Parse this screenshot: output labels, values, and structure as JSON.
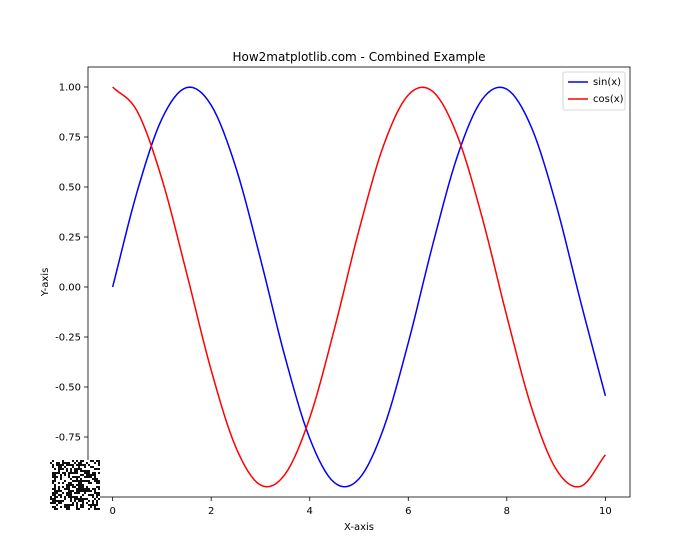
{
  "chart_data": {
    "type": "line",
    "title": "How2matplotlib.com - Combined Example",
    "xlabel": "X-axis",
    "ylabel": "Y-axis",
    "xlim": [
      -0.5,
      10.5
    ],
    "ylim": [
      -1.05,
      1.1
    ],
    "x_ticks": [
      0,
      2,
      4,
      6,
      8,
      10
    ],
    "x_tick_labels": [
      "0",
      "2",
      "4",
      "6",
      "8",
      "10"
    ],
    "y_ticks": [
      -0.75,
      -0.5,
      -0.25,
      0.0,
      0.25,
      0.5,
      0.75,
      1.0
    ],
    "y_tick_labels": [
      "-0.75",
      "-0.50",
      "-0.25",
      "0.00",
      "0.25",
      "0.50",
      "0.75",
      "1.00"
    ],
    "grid": false,
    "legend_position": "top-right",
    "x": [
      0,
      0.5,
      1,
      1.5,
      2,
      2.5,
      3,
      3.5,
      4,
      4.5,
      5,
      5.5,
      6,
      6.5,
      7,
      7.5,
      8,
      8.5,
      9,
      9.5,
      10
    ],
    "series": [
      {
        "name": "sin(x)",
        "color": "#0000ff",
        "values": [
          0.0,
          0.479,
          0.841,
          0.997,
          0.909,
          0.598,
          0.141,
          -0.351,
          -0.757,
          -0.978,
          -0.959,
          -0.706,
          -0.279,
          0.215,
          0.657,
          0.938,
          0.989,
          0.798,
          0.412,
          -0.075,
          -0.544
        ]
      },
      {
        "name": "cos(x)",
        "color": "#ff0000",
        "values": [
          1.0,
          0.878,
          0.54,
          0.071,
          -0.416,
          -0.801,
          -0.99,
          -0.936,
          -0.654,
          -0.211,
          0.284,
          0.709,
          0.96,
          0.977,
          0.754,
          0.347,
          -0.146,
          -0.602,
          -0.911,
          -0.997,
          -0.839
        ]
      }
    ]
  },
  "decorations": {
    "noise_patch_icon": "qr-noise-icon"
  }
}
